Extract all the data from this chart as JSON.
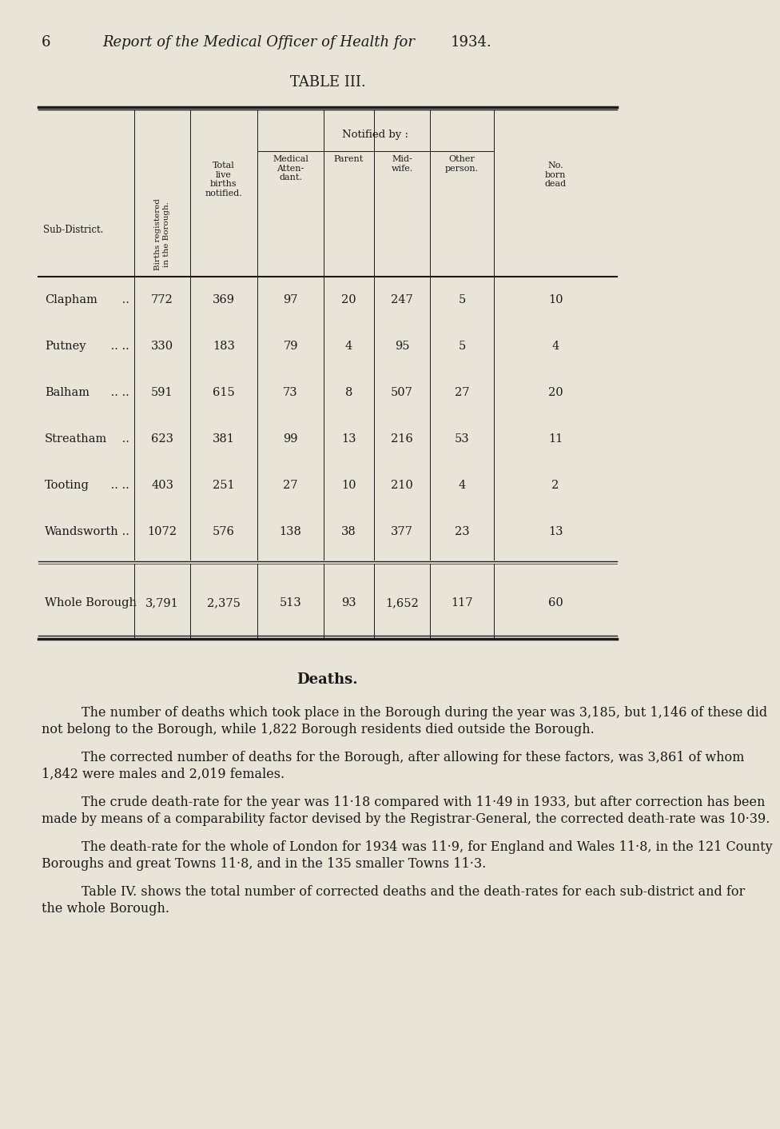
{
  "page_number": "6",
  "page_title_italic": "Report of the Medical Officer of Health for ",
  "page_title_year": "1934.",
  "table_title": "TABLE III.",
  "bg_color": "#e8e4d8",
  "text_color": "#1a1a1a",
  "notified_by_label": "Notified by :",
  "sub_district_label": "Sub-District.",
  "rows": [
    [
      "Clapham",
      " ..",
      "772",
      "369",
      "97",
      "20",
      "247",
      "5",
      "10"
    ],
    [
      "Putney",
      " .. ..",
      "330",
      "183",
      "79",
      "4",
      "95",
      "5",
      "4"
    ],
    [
      "Balham",
      " .. ..",
      "591",
      "615",
      "73",
      "8",
      "507",
      "27",
      "20"
    ],
    [
      "Streatham",
      " ..",
      "623",
      "381",
      "99",
      "13",
      "216",
      "53",
      "11"
    ],
    [
      "Tooting",
      " .. ..",
      "403",
      "251",
      "27",
      "10",
      "210",
      "4",
      "2"
    ],
    [
      "Wandsworth",
      " ..",
      "1072",
      "576",
      "138",
      "38",
      "377",
      "23",
      "13"
    ]
  ],
  "total_row": [
    "Whole Borough",
    "3,791",
    "2,375",
    "513",
    "93",
    "1,652",
    "117",
    "60"
  ],
  "deaths_heading": "Deaths.",
  "paragraph1": "The number of deaths which took place in the Borough during the year was 3,185, but 1,146 of these did not belong to the Borough, while 1,822 Borough residents died outside the Borough.",
  "paragraph2": "The corrected number of deaths for the Borough, after allowing for these factors, was 3,861 of whom 1,842 were males and 2,019 females.",
  "paragraph3": "The crude death-rate for the year was 11·18 compared with 11·49 in 1933, but after correction has been made by means of a comparability factor devised by the Registrar-General, the corrected death-rate was 10·39.",
  "paragraph4": "The death-rate for the whole of London for 1934 was 11·9, for England and Wales 11·8, in the 121 County Boroughs and great Towns 11·8, and in the 135 smaller Towns 11·3.",
  "paragraph5": "Table IV. shows the total number of corrected deaths and the death-rates for each sub-district and for the whole Borough."
}
